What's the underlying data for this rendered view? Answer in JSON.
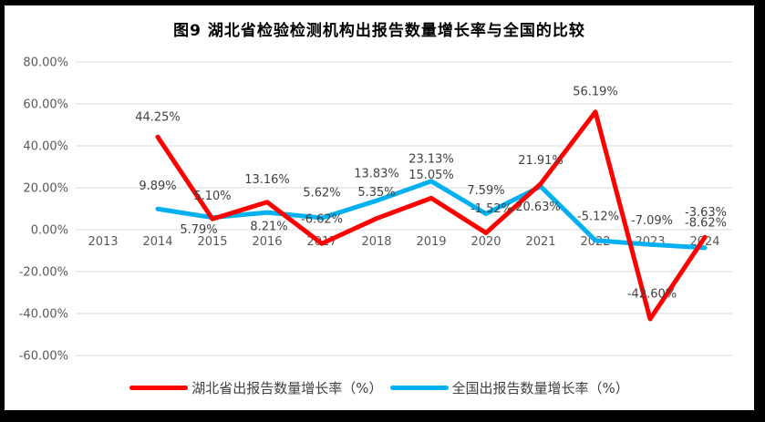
{
  "title": "图9 湖北省检验检测机构出报告数量增长率与全国的比较",
  "chart_data": {
    "type": "line",
    "title": "图9 湖北省检验检测机构出报告数量增长率与全国的比较",
    "categories": [
      "2013",
      "2014",
      "2015",
      "2016",
      "2017",
      "2018",
      "2019",
      "2020",
      "2021",
      "2022",
      "2023",
      "2024"
    ],
    "series": [
      {
        "name": "湖北省出报告数量增长率（%）",
        "color": "#FF0000",
        "values": [
          null,
          44.25,
          5.1,
          13.16,
          -6.62,
          5.35,
          15.05,
          -1.52,
          21.91,
          56.19,
          -42.6,
          -3.63
        ],
        "labels": [
          "",
          "44.25%",
          "5.10%",
          "13.16%",
          "-6.62%",
          "5.35%",
          "15.05%",
          "-1.52%",
          "21.91%",
          "56.19%",
          "-42.60%",
          "-3.63%"
        ],
        "label_dx": [
          0,
          0,
          0,
          0,
          0,
          0,
          0,
          6,
          0,
          0,
          2,
          1
        ],
        "label_dy": [
          0,
          -22,
          -26,
          -25,
          -27,
          -29,
          -26,
          -27,
          -26,
          -23,
          -28,
          -28
        ]
      },
      {
        "name": "全国出报告数量增长率（%）",
        "color": "#00B0F0",
        "values": [
          null,
          9.89,
          5.79,
          8.21,
          5.62,
          13.83,
          23.13,
          7.59,
          20.63,
          -5.12,
          -7.09,
          -8.62
        ],
        "labels": [
          "",
          "9.89%",
          "5.79%",
          "8.21%",
          "5.62%",
          "13.83%",
          "23.13%",
          "7.59%",
          "20.63%",
          "-5.12%",
          "-7.09%",
          "-8.62%"
        ],
        "label_dx": [
          0,
          0,
          -15,
          2,
          0,
          0,
          0,
          0,
          -3,
          3,
          2,
          1
        ],
        "label_dy": [
          0,
          -26,
          13,
          15,
          -28,
          -30,
          -25,
          -26,
          22,
          -27,
          -27,
          -28
        ]
      }
    ],
    "ylim": [
      -60,
      80
    ],
    "ytick_step": 20,
    "ytick_labels": [
      "80.00%",
      "60.00%",
      "40.00%",
      "20.00%",
      "0.00%",
      "-20.00%",
      "-40.00%",
      "-60.00%"
    ],
    "xlabel": "",
    "ylabel": "",
    "grid": true,
    "legend_position": "bottom",
    "colors": {
      "hubei_line": "#FF0000",
      "national_line": "#00B0F0",
      "gridline": "#D9D9D9",
      "axis_text": "#595959",
      "data_label_text": "#404040",
      "title_text": "#000000",
      "frame": "#000000",
      "background": "#FFFFFF"
    }
  },
  "legend": {
    "items": [
      {
        "label": "湖北省出报告数量增长率（%）",
        "color": "#FF0000"
      },
      {
        "label": "全国出报告数量增长率（%）",
        "color": "#00B0F0"
      }
    ]
  }
}
